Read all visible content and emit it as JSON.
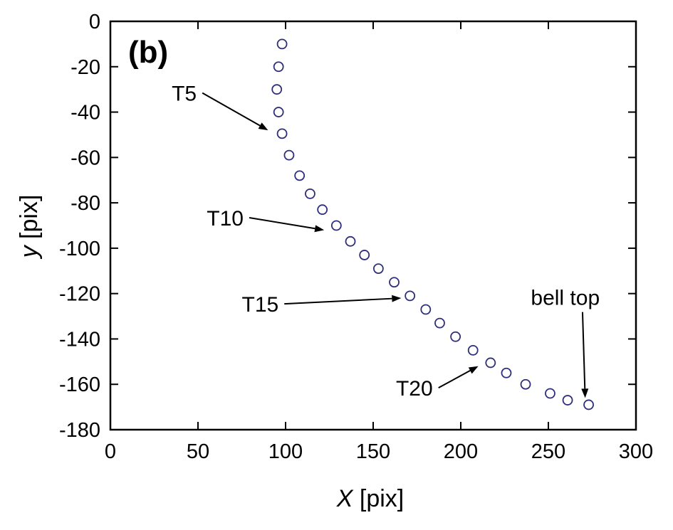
{
  "chart_data": {
    "type": "scatter",
    "panel_label": "(b)",
    "xlabel_italic": "X",
    "xlabel_rest": " [pix]",
    "ylabel_italic": "y",
    "ylabel_rest": " [pix]",
    "xlim": [
      0,
      300
    ],
    "ylim": [
      -180,
      0
    ],
    "xticks": [
      0,
      50,
      100,
      150,
      200,
      250,
      300
    ],
    "yticks": [
      0,
      -20,
      -40,
      -60,
      -80,
      -100,
      -120,
      -140,
      -160,
      -180
    ],
    "grid": false,
    "marker": "open-circle",
    "marker_color": "#2e2e7a",
    "series": [
      {
        "points": [
          [
            98,
            -10
          ],
          [
            96,
            -20
          ],
          [
            95,
            -30
          ],
          [
            96,
            -40
          ],
          [
            98,
            -49.5
          ],
          [
            102,
            -59
          ],
          [
            108,
            -68
          ],
          [
            114,
            -76
          ],
          [
            121,
            -83
          ],
          [
            129,
            -90
          ],
          [
            137,
            -97
          ],
          [
            145,
            -103
          ],
          [
            153,
            -109
          ],
          [
            162,
            -115
          ],
          [
            171,
            -121
          ],
          [
            180,
            -127
          ],
          [
            188,
            -133
          ],
          [
            197,
            -139
          ],
          [
            207,
            -145
          ],
          [
            217,
            -150.5
          ],
          [
            226,
            -155
          ],
          [
            237,
            -160
          ],
          [
            251,
            -164
          ],
          [
            261,
            -167
          ],
          [
            273,
            -169
          ]
        ]
      }
    ],
    "annotations": [
      {
        "text": "T5",
        "text_x": 35,
        "text_y": -35,
        "arrow_to": [
          90,
          -48
        ]
      },
      {
        "text": "T10",
        "text_x": 55,
        "text_y": -90,
        "arrow_to": [
          122,
          -92
        ]
      },
      {
        "text": "T15",
        "text_x": 75,
        "text_y": -128,
        "arrow_to": [
          166,
          -122
        ]
      },
      {
        "text": "T20",
        "text_x": 163,
        "text_y": -165,
        "arrow_to": [
          210,
          -152
        ]
      },
      {
        "text": "bell top",
        "text_x": 240,
        "text_y": -125,
        "arrow_to": [
          271,
          -166
        ]
      }
    ]
  }
}
